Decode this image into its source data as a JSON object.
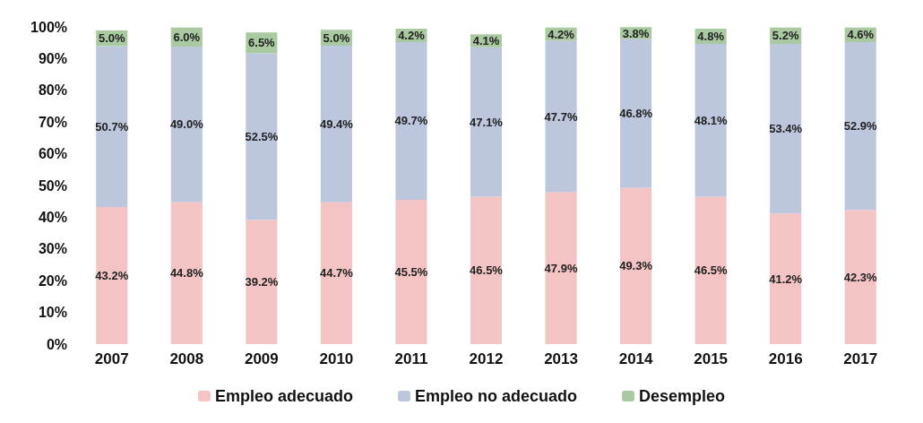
{
  "chart_data": {
    "type": "bar",
    "stacked": true,
    "categories": [
      "2007",
      "2008",
      "2009",
      "2010",
      "2011",
      "2012",
      "2013",
      "2014",
      "2015",
      "2016",
      "2017"
    ],
    "series": [
      {
        "name": "Empleo adecuado",
        "color": "#f4c4c4",
        "values": [
          43.2,
          44.8,
          39.2,
          44.7,
          45.5,
          46.5,
          47.9,
          49.3,
          46.5,
          41.2,
          42.3
        ],
        "value_labels": [
          "43.2%",
          "44.8%",
          "39.2%",
          "44.7%",
          "45.5%",
          "46.5%",
          "47.9%",
          "49.3%",
          "46.5%",
          "41.2%",
          "42.3%"
        ]
      },
      {
        "name": "Empleo no adecuado",
        "color": "#bcc6dc",
        "values": [
          50.7,
          49.0,
          52.5,
          49.4,
          49.7,
          47.1,
          47.7,
          46.8,
          48.1,
          53.4,
          52.9
        ],
        "value_labels": [
          "50.7%",
          "49.0%",
          "52.5%",
          "49.4%",
          "49.7%",
          "47.1%",
          "47.7%",
          "46.8%",
          "48.1%",
          "53.4%",
          "52.9%"
        ]
      },
      {
        "name": "Desempleo",
        "color": "#a9c9a0",
        "values": [
          5.0,
          6.0,
          6.5,
          5.0,
          4.2,
          4.1,
          4.2,
          3.8,
          4.8,
          5.2,
          4.6
        ],
        "value_labels": [
          "5.0%",
          "6.0%",
          "6.5%",
          "5.0%",
          "4.2%",
          "4.1%",
          "4.2%",
          "3.8%",
          "4.8%",
          "5.2%",
          "4.6%"
        ]
      }
    ],
    "ylim": [
      0,
      100
    ],
    "yticks": [
      {
        "value": 0,
        "label": "0%"
      },
      {
        "value": 10,
        "label": "10%"
      },
      {
        "value": 20,
        "label": "20%"
      },
      {
        "value": 30,
        "label": "30%"
      },
      {
        "value": 40,
        "label": "40%"
      },
      {
        "value": 50,
        "label": "50%"
      },
      {
        "value": 60,
        "label": "60%"
      },
      {
        "value": 70,
        "label": "70%"
      },
      {
        "value": 80,
        "label": "80%"
      },
      {
        "value": 90,
        "label": "90%"
      },
      {
        "value": 100,
        "label": "100%"
      }
    ],
    "grid": false,
    "legend": "bottom"
  }
}
